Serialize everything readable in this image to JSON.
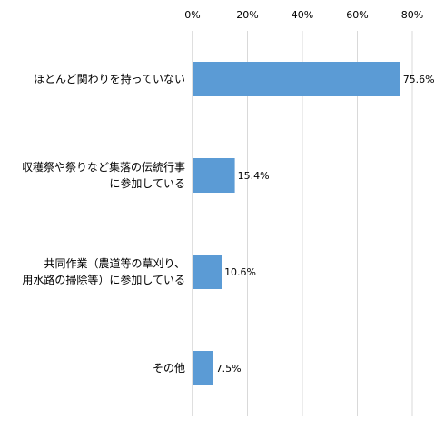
{
  "chart_data": {
    "type": "bar",
    "orientation": "horizontal",
    "categories": [
      [
        "ほとんど関わりを持っていない"
      ],
      [
        "収穫祭や祭りなど集落の伝統行事",
        "に参加している"
      ],
      [
        "共同作業（農道等の草刈り、",
        "用水路の掃除等）に参加している"
      ],
      [
        "その他"
      ]
    ],
    "values": [
      75.6,
      15.4,
      10.6,
      7.5
    ],
    "data_labels": [
      "75.6%",
      "15.4%",
      "10.6%",
      "7.5%"
    ],
    "x_ticks": [
      "0%",
      "20%",
      "40%",
      "60%",
      "80%"
    ],
    "x_tick_values": [
      0,
      20,
      40,
      60,
      80
    ],
    "xlim": [
      0,
      80
    ],
    "x_axis_position": "top",
    "grid": true,
    "bar_color": "#5b9bd5",
    "title": "",
    "xlabel": "",
    "ylabel": ""
  }
}
